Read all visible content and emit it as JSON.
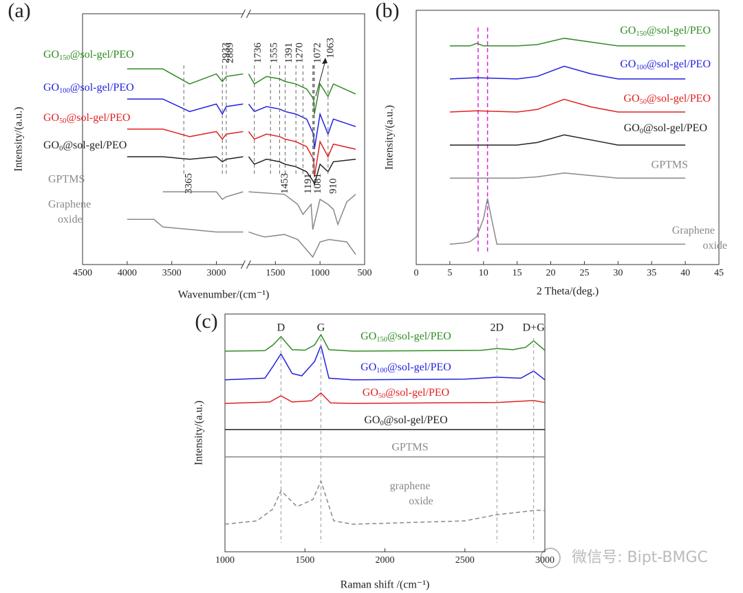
{
  "chart_data": [
    {
      "type": "line",
      "panel": "(a)",
      "xlabel": "Wavenumber/(cm⁻¹)",
      "ylabel": "Intensity/(a.u.)",
      "xlim": [
        4500,
        500
      ],
      "xbreak": [
        2700,
        1800
      ],
      "xticks": [
        4500,
        4000,
        3500,
        3000,
        1500,
        1000,
        500
      ],
      "ylim": [
        0,
        100
      ],
      "peaks": [
        3365,
        2933,
        2889,
        1736,
        1555,
        1391,
        1270,
        1072,
        1063,
        1453,
        1191,
        1081,
        910
      ],
      "series": [
        {
          "name": "GO150@sol-gel/PEO",
          "color": "#2e8b22",
          "x": [
            4000,
            3600,
            3300,
            3000,
            2933,
            2889,
            2700,
            2200,
            1800,
            1736,
            1600,
            1453,
            1391,
            1270,
            1150,
            1072,
            1063,
            1000,
            910,
            850,
            600
          ],
          "values": [
            78,
            78,
            72,
            76,
            73,
            75,
            76,
            null,
            76,
            72,
            75,
            74,
            73,
            72,
            70,
            66,
            60,
            72,
            67,
            72,
            68
          ]
        },
        {
          "name": "GO100@sol-gel/PEO",
          "color": "#1f1fe0",
          "x": [
            4000,
            3600,
            3300,
            3000,
            2933,
            2889,
            2700,
            2200,
            1800,
            1736,
            1600,
            1453,
            1391,
            1270,
            1150,
            1072,
            1063,
            1000,
            910,
            850,
            600
          ],
          "values": [
            66,
            66,
            61,
            64,
            60,
            63,
            64,
            null,
            64,
            61,
            63,
            62,
            61,
            60,
            58,
            52,
            46,
            60,
            52,
            58,
            55
          ]
        },
        {
          "name": "GO50@sol-gel/PEO",
          "color": "#e02020",
          "x": [
            4000,
            3600,
            3300,
            3000,
            2933,
            2889,
            2700,
            2200,
            1800,
            1736,
            1600,
            1453,
            1391,
            1270,
            1150,
            1072,
            1063,
            1000,
            910,
            850,
            600
          ],
          "values": [
            54,
            54,
            51,
            53,
            50,
            52,
            53,
            null,
            53,
            50,
            52,
            51,
            50,
            49,
            47,
            42,
            35,
            49,
            43,
            48,
            46
          ]
        },
        {
          "name": "GO0@sol-gel/PEO",
          "color": "#222222",
          "x": [
            4000,
            3600,
            3300,
            3000,
            2933,
            2889,
            2700,
            2200,
            1800,
            1736,
            1600,
            1453,
            1391,
            1270,
            1150,
            1072,
            1063,
            1000,
            910,
            850,
            600
          ],
          "values": [
            43,
            43,
            42,
            43,
            41,
            42,
            43,
            null,
            43,
            40,
            42,
            41,
            40,
            39,
            37,
            33,
            32,
            40,
            37,
            41,
            42
          ]
        },
        {
          "name": "GPTMS",
          "color": "#888888",
          "x": [
            3600,
            3000,
            2933,
            2889,
            2700,
            2200,
            1800,
            1400,
            1250,
            1191,
            1100,
            1081,
            1000,
            910,
            850,
            800,
            700,
            600
          ],
          "values": [
            29,
            29,
            26,
            27,
            29,
            null,
            29,
            28,
            24,
            20,
            24,
            14,
            26,
            24,
            22,
            16,
            25,
            28
          ]
        },
        {
          "name": "Graphene oxide",
          "color": "#888888",
          "x": [
            4000,
            3700,
            3600,
            3300,
            3000,
            2700,
            2200,
            1800,
            1720,
            1620,
            1400,
            1250,
            1081,
            1000,
            900,
            700,
            600
          ],
          "values": [
            18,
            18,
            15,
            14,
            13,
            13,
            null,
            13,
            12,
            11,
            12,
            10,
            3,
            9,
            10,
            9,
            4
          ]
        }
      ]
    },
    {
      "type": "line",
      "panel": "(b)",
      "xlabel": "2 Theta/(deg.)",
      "ylabel": "Intensity/(a.u.)",
      "xlim": [
        0,
        45
      ],
      "xticks": [
        0,
        5,
        10,
        15,
        20,
        25,
        30,
        35,
        40,
        45
      ],
      "ylim": [
        0,
        100
      ],
      "markers": [
        9.2,
        10.6
      ],
      "marker_color": "#e020e0",
      "series": [
        {
          "name": "GO150@sol-gel/PEO",
          "color": "#2e8b22",
          "x": [
            5,
            8,
            9,
            10,
            15,
            18,
            22,
            26,
            30,
            40
          ],
          "values": [
            86,
            86,
            87,
            86,
            86,
            86.5,
            89,
            87.5,
            86,
            86
          ]
        },
        {
          "name": "GO100@sol-gel/PEO",
          "color": "#1f1fe0",
          "x": [
            5,
            9,
            15,
            18,
            22,
            26,
            30,
            40
          ],
          "values": [
            73,
            73.5,
            73,
            74,
            78,
            75,
            73,
            73
          ]
        },
        {
          "name": "GO50@sol-gel/PEO",
          "color": "#e02020",
          "x": [
            5,
            9,
            15,
            18,
            22,
            26,
            30,
            40
          ],
          "values": [
            60,
            60.5,
            60,
            61,
            65,
            62,
            60,
            60
          ]
        },
        {
          "name": "GO0@sol-gel/PEO",
          "color": "#222222",
          "x": [
            5,
            15,
            18,
            22,
            26,
            30,
            40
          ],
          "values": [
            47,
            47,
            48,
            51,
            49,
            47,
            47
          ]
        },
        {
          "name": "GPTMS",
          "color": "#888888",
          "x": [
            5,
            15,
            18,
            22,
            26,
            30,
            40
          ],
          "values": [
            34,
            34,
            34.5,
            36,
            35,
            34,
            34
          ]
        },
        {
          "name": "Graphene oxide",
          "color": "#888888",
          "x": [
            5,
            7,
            8,
            9,
            10,
            10.6,
            11.2,
            12,
            40
          ],
          "values": [
            8,
            8.5,
            9,
            11,
            18,
            26,
            18,
            8,
            8
          ]
        }
      ]
    },
    {
      "type": "line",
      "panel": "(c)",
      "xlabel": "Raman shift /(cm⁻¹)",
      "ylabel": "Intensity/(a.u.)",
      "xlim": [
        1000,
        3000
      ],
      "xticks": [
        1000,
        1500,
        2000,
        2500,
        3000
      ],
      "ylim": [
        0,
        100
      ],
      "peaks": [
        {
          "value": 1350,
          "label": "D"
        },
        {
          "value": 1600,
          "label": "G"
        },
        {
          "value": 2700,
          "label": "2D"
        },
        {
          "value": 2930,
          "label": "D+G"
        }
      ],
      "series": [
        {
          "name": "GO150@sol-gel/PEO",
          "color": "#2e8b22",
          "x": [
            1000,
            1250,
            1300,
            1350,
            1420,
            1500,
            1560,
            1600,
            1650,
            1800,
            2600,
            2700,
            2800,
            2880,
            2930,
            3000
          ],
          "values": [
            84.4,
            84.6,
            87,
            90.5,
            85,
            84.8,
            87,
            91.3,
            85,
            84.4,
            84.7,
            85.5,
            85,
            86,
            88.7,
            84.7
          ]
        },
        {
          "name": "GO100@sol-gel/PEO",
          "color": "#1f1fe0",
          "x": [
            1000,
            1250,
            1300,
            1350,
            1420,
            1480,
            1560,
            1600,
            1650,
            1800,
            2500,
            2700,
            2850,
            2930,
            3000
          ],
          "values": [
            72.3,
            73,
            78,
            83.2,
            75,
            74,
            80,
            86.7,
            73,
            72.3,
            72.6,
            73.4,
            73,
            76,
            72.3
          ]
        },
        {
          "name": "GO50@sol-gel/PEO",
          "color": "#e02020",
          "x": [
            1000,
            1280,
            1350,
            1420,
            1540,
            1600,
            1660,
            1800,
            2700,
            2930,
            3000
          ],
          "values": [
            62.4,
            63,
            65.6,
            63,
            63.5,
            66.8,
            62.6,
            62.4,
            62.8,
            63.6,
            62.8
          ]
        },
        {
          "name": "GO0@sol-gel/PEO",
          "color": "#222222",
          "x": [
            1000,
            3000
          ],
          "values": [
            51.4,
            51.4
          ]
        },
        {
          "name": "GPTMS",
          "color": "#888888",
          "x": [
            1000,
            3000
          ],
          "values": [
            39.9,
            39.9
          ]
        },
        {
          "name": "graphene oxide",
          "color": "#888888",
          "dashed": true,
          "x": [
            1000,
            1200,
            1300,
            1350,
            1450,
            1550,
            1600,
            1680,
            1800,
            2500,
            2700,
            2950,
            3000
          ],
          "values": [
            11.6,
            13,
            18,
            25.7,
            19,
            22,
            29.8,
            13,
            11.6,
            13,
            15.6,
            17.5,
            17.3
          ]
        }
      ]
    }
  ],
  "watermark": "微信号: Bipt-BMGC"
}
